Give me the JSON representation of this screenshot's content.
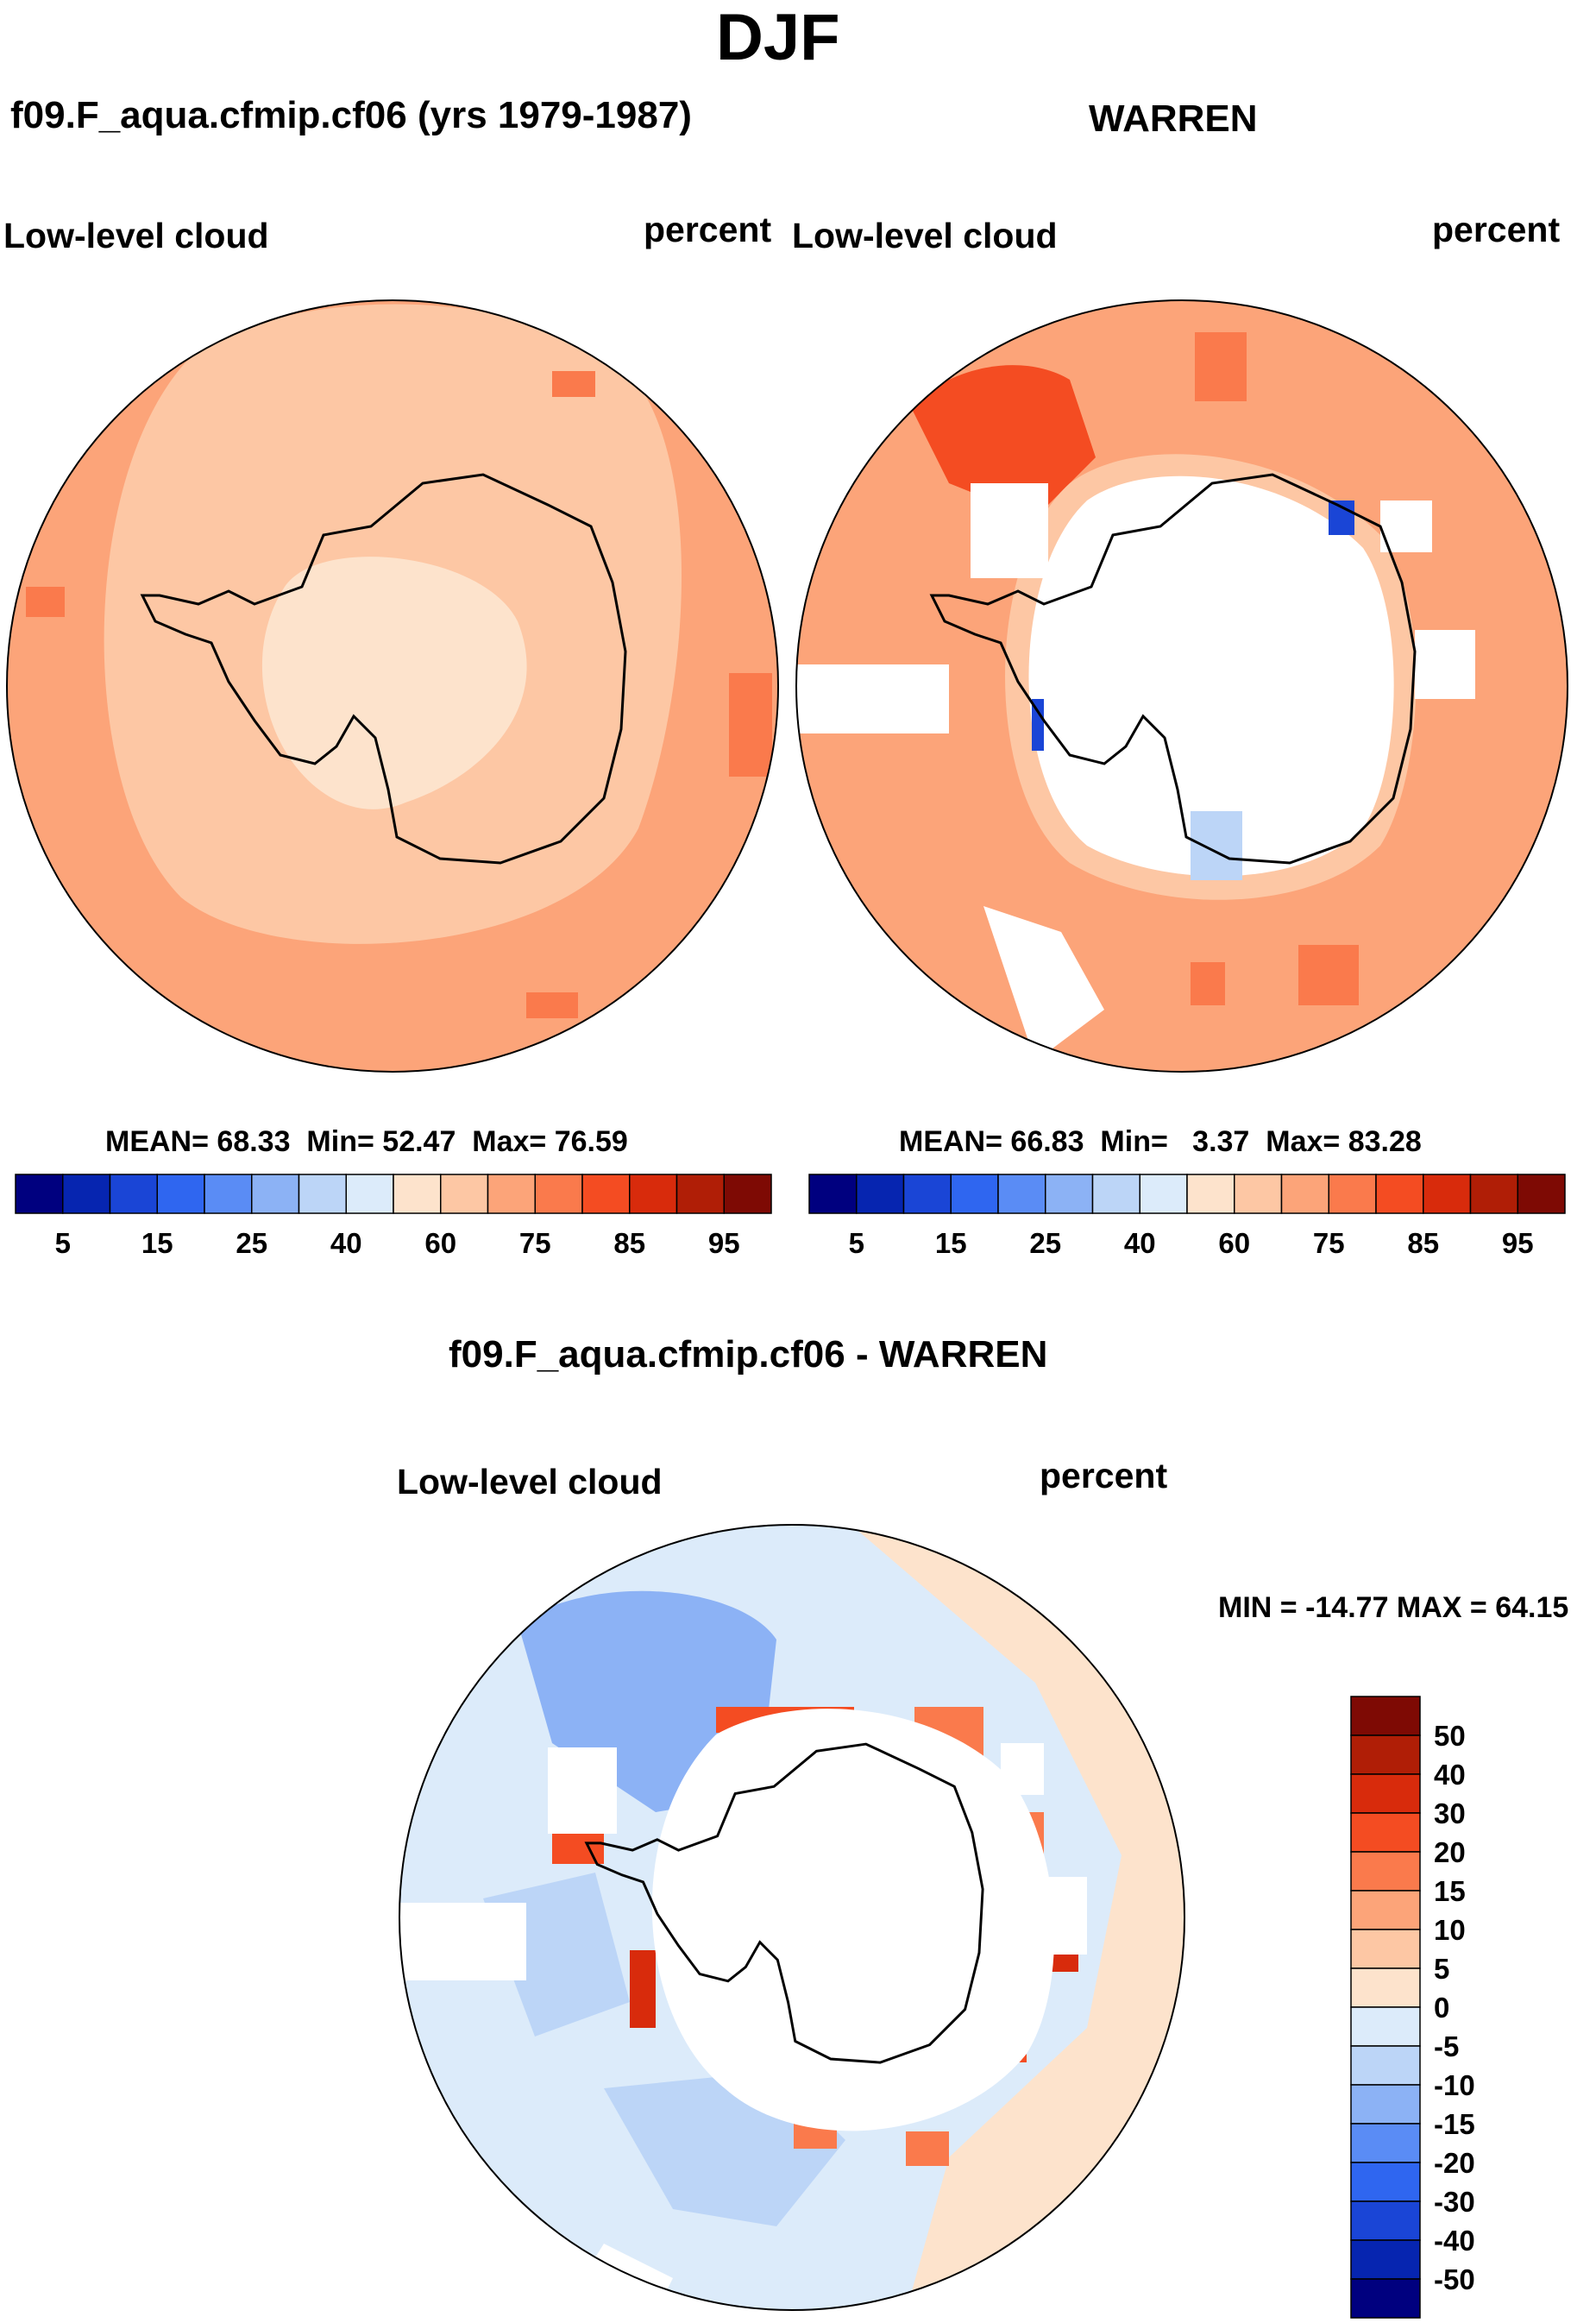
{
  "title": "DJF",
  "panels": {
    "model": {
      "case": "f09.F_aqua.cfmip.cf06 (yrs 1979-1987)",
      "variable": "Low-level cloud",
      "units": "percent",
      "stats": {
        "mean_label": "MEAN=",
        "mean": "68.33",
        "min_label": "Min=",
        "min": "52.47",
        "max_label": "Max=",
        "max": "76.59"
      }
    },
    "obs": {
      "case": "WARREN",
      "variable": "Low-level cloud",
      "units": "percent",
      "stats": {
        "mean_label": "MEAN=",
        "mean": "66.83",
        "min_label": "Min=",
        "min": "3.37",
        "max_label": "Max=",
        "max": "83.28"
      }
    },
    "diff": {
      "case": "f09.F_aqua.cfmip.cf06 - WARREN",
      "variable": "Low-level cloud",
      "units": "percent",
      "minmax": "MIN = -14.77 MAX =  64.15"
    }
  },
  "colors": {
    "mean_scale": [
      "#00007f",
      "#0625b0",
      "#1a45d6",
      "#2f66f0",
      "#5a8cf5",
      "#8cb2f5",
      "#bcd5f7",
      "#dcebfa",
      "#fde3cc",
      "#fdc7a4",
      "#fca479",
      "#fa7a4c",
      "#f44c22",
      "#d82b0c",
      "#b01e06",
      "#7e0a04"
    ],
    "diff_scale": [
      "#7e0a04",
      "#b01e06",
      "#d82b0c",
      "#f44c22",
      "#fa7a4c",
      "#fca479",
      "#fdc7a4",
      "#fde3cc",
      "#dcebfa",
      "#bcd5f7",
      "#8cb2f5",
      "#5a8cf5",
      "#2f66f0",
      "#1a45d6",
      "#0625b0",
      "#00007f"
    ]
  },
  "chart_data": [
    {
      "type": "heatmap",
      "projection": "south polar stereographic",
      "title": "f09.F_aqua.cfmip.cf06 (yrs 1979-1987)",
      "variable": "Low-level cloud",
      "units": "percent",
      "mean": 68.33,
      "min": 52.47,
      "max": 76.59,
      "colorbar_ticks": [
        "5",
        "15",
        "25",
        "40",
        "60",
        "75",
        "85",
        "95"
      ],
      "colorbar_levels": [
        5,
        10,
        15,
        20,
        25,
        30,
        40,
        50,
        60,
        65,
        70,
        75,
        80,
        85,
        90,
        95
      ]
    },
    {
      "type": "heatmap",
      "projection": "south polar stereographic",
      "title": "WARREN",
      "variable": "Low-level cloud",
      "units": "percent",
      "mean": 66.83,
      "min": 3.37,
      "max": 83.28,
      "colorbar_ticks": [
        "5",
        "15",
        "25",
        "40",
        "60",
        "75",
        "85",
        "95"
      ],
      "colorbar_levels": [
        5,
        10,
        15,
        20,
        25,
        30,
        40,
        50,
        60,
        65,
        70,
        75,
        80,
        85,
        90,
        95
      ]
    },
    {
      "type": "heatmap",
      "projection": "south polar stereographic",
      "title": "f09.F_aqua.cfmip.cf06 - WARREN",
      "variable": "Low-level cloud",
      "units": "percent",
      "min": -14.77,
      "max": 64.15,
      "colorbar_ticks": [
        "50",
        "40",
        "30",
        "20",
        "15",
        "10",
        "5",
        "0",
        "-5",
        "-10",
        "-15",
        "-20",
        "-30",
        "-40",
        "-50"
      ],
      "colorbar_levels": [
        50,
        40,
        30,
        20,
        15,
        10,
        5,
        0,
        -5,
        -10,
        -15,
        -20,
        -30,
        -40,
        -50
      ]
    }
  ]
}
